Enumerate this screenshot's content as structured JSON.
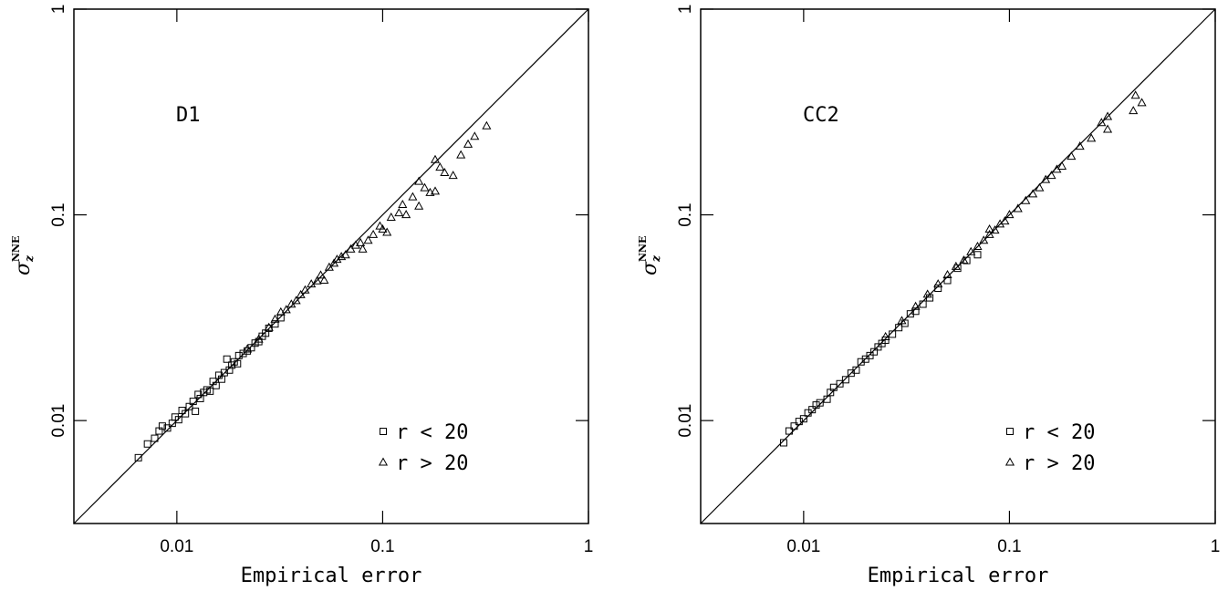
{
  "chart_data": [
    {
      "type": "scatter",
      "annotation": "D1",
      "xlabel": "Empirical error",
      "ylabel": {
        "symbol": "σ",
        "sub": "z",
        "sup": "NNE"
      },
      "xlim": [
        0.00316,
        1
      ],
      "ylim": [
        0.00316,
        1
      ],
      "xticks": [
        0.01,
        0.1,
        1
      ],
      "yticks": [
        0.01,
        0.1,
        1
      ],
      "log_x": true,
      "log_y": true,
      "diagonal": true,
      "legend": "lower right",
      "series": [
        {
          "name": "r < 20",
          "marker": "square",
          "color": "#000000",
          "x": [
            0.0065,
            0.0072,
            0.0078,
            0.0082,
            0.0085,
            0.009,
            0.0095,
            0.0098,
            0.0102,
            0.0106,
            0.011,
            0.0115,
            0.012,
            0.0123,
            0.0127,
            0.013,
            0.0135,
            0.014,
            0.0145,
            0.015,
            0.0155,
            0.016,
            0.0165,
            0.017,
            0.0175,
            0.018,
            0.0185,
            0.019,
            0.0197,
            0.02,
            0.021,
            0.022,
            0.023,
            0.024,
            0.025,
            0.026,
            0.027,
            0.028,
            0.03,
            0.032
          ],
          "y": [
            0.0066,
            0.0077,
            0.0082,
            0.0089,
            0.0094,
            0.0092,
            0.0097,
            0.0104,
            0.0101,
            0.0112,
            0.0108,
            0.0117,
            0.0124,
            0.0111,
            0.0134,
            0.0128,
            0.0137,
            0.0141,
            0.0139,
            0.0155,
            0.0148,
            0.0166,
            0.0159,
            0.0171,
            0.0199,
            0.0176,
            0.0186,
            0.0193,
            0.0189,
            0.0207,
            0.0212,
            0.0218,
            0.0226,
            0.0238,
            0.0242,
            0.0257,
            0.0266,
            0.0281,
            0.0295,
            0.0316
          ]
        },
        {
          "name": "r > 20",
          "marker": "triangle",
          "color": "#000000",
          "x": [
            0.022,
            0.025,
            0.028,
            0.03,
            0.032,
            0.034,
            0.036,
            0.038,
            0.04,
            0.042,
            0.045,
            0.048,
            0.05,
            0.052,
            0.055,
            0.058,
            0.06,
            0.063,
            0.066,
            0.07,
            0.074,
            0.078,
            0.08,
            0.085,
            0.09,
            0.097,
            0.1,
            0.105,
            0.11,
            0.12,
            0.125,
            0.13,
            0.14,
            0.15,
            0.16,
            0.17,
            0.18,
            0.19,
            0.2,
            0.22,
            0.24,
            0.26,
            0.28,
            0.32,
            0.15,
            0.18
          ],
          "y": [
            0.0222,
            0.0248,
            0.0283,
            0.031,
            0.0336,
            0.0345,
            0.0367,
            0.0382,
            0.0408,
            0.043,
            0.046,
            0.0476,
            0.0508,
            0.048,
            0.0555,
            0.058,
            0.0606,
            0.0625,
            0.0637,
            0.068,
            0.071,
            0.073,
            0.068,
            0.075,
            0.08,
            0.088,
            0.085,
            0.082,
            0.097,
            0.102,
            0.112,
            0.1,
            0.122,
            0.145,
            0.135,
            0.128,
            0.185,
            0.17,
            0.16,
            0.155,
            0.195,
            0.22,
            0.24,
            0.27,
            0.11,
            0.13
          ]
        }
      ]
    },
    {
      "type": "scatter",
      "annotation": "CC2",
      "xlabel": "Empirical error",
      "ylabel": {
        "symbol": "σ",
        "sub": "z",
        "sup": "NNE"
      },
      "xlim": [
        0.00316,
        1
      ],
      "ylim": [
        0.00316,
        1
      ],
      "xticks": [
        0.01,
        0.1,
        1
      ],
      "yticks": [
        0.01,
        0.1,
        1
      ],
      "log_x": true,
      "log_y": true,
      "diagonal": true,
      "legend": "lower right",
      "series": [
        {
          "name": "r < 20",
          "marker": "square",
          "color": "#000000",
          "x": [
            0.008,
            0.0085,
            0.009,
            0.0095,
            0.01,
            0.0105,
            0.011,
            0.0115,
            0.012,
            0.013,
            0.0135,
            0.014,
            0.015,
            0.016,
            0.017,
            0.018,
            0.019,
            0.02,
            0.021,
            0.022,
            0.023,
            0.024,
            0.025,
            0.027,
            0.029,
            0.031,
            0.033,
            0.035,
            0.038,
            0.041,
            0.045,
            0.05,
            0.056,
            0.062,
            0.07
          ],
          "y": [
            0.0078,
            0.0089,
            0.0094,
            0.0099,
            0.0102,
            0.0109,
            0.0113,
            0.0119,
            0.0122,
            0.0127,
            0.0137,
            0.0145,
            0.0151,
            0.0158,
            0.017,
            0.0176,
            0.0193,
            0.0199,
            0.0207,
            0.0216,
            0.0228,
            0.0237,
            0.0246,
            0.0263,
            0.0283,
            0.0297,
            0.033,
            0.034,
            0.0368,
            0.0395,
            0.044,
            0.048,
            0.055,
            0.06,
            0.064
          ]
        },
        {
          "name": "r > 20",
          "marker": "triangle",
          "color": "#000000",
          "x": [
            0.025,
            0.03,
            0.035,
            0.04,
            0.045,
            0.05,
            0.055,
            0.06,
            0.065,
            0.07,
            0.075,
            0.08,
            0.085,
            0.09,
            0.095,
            0.1,
            0.11,
            0.12,
            0.13,
            0.14,
            0.15,
            0.16,
            0.17,
            0.18,
            0.2,
            0.22,
            0.25,
            0.28,
            0.3,
            0.3,
            0.4,
            0.41,
            0.44,
            0.08
          ],
          "y": [
            0.0255,
            0.0305,
            0.0358,
            0.041,
            0.046,
            0.051,
            0.056,
            0.06,
            0.066,
            0.07,
            0.075,
            0.08,
            0.084,
            0.09,
            0.093,
            0.1,
            0.107,
            0.117,
            0.126,
            0.135,
            0.148,
            0.155,
            0.166,
            0.172,
            0.192,
            0.215,
            0.235,
            0.28,
            0.3,
            0.26,
            0.32,
            0.38,
            0.35,
            0.085
          ]
        }
      ]
    }
  ]
}
